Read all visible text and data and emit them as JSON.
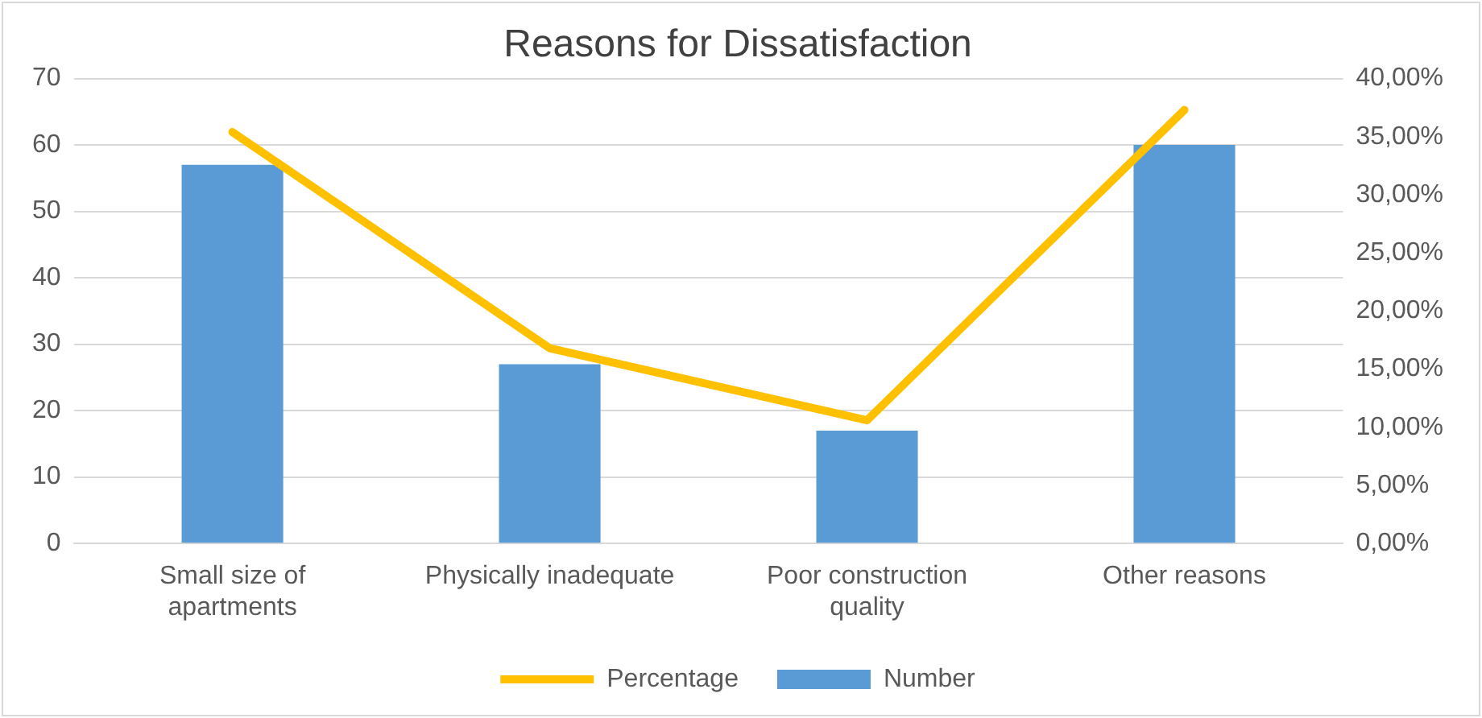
{
  "chart_data": {
    "type": "bar",
    "title": "Reasons for Dissatisfaction",
    "categories": [
      "Small size of apartments",
      "Physically inadequate",
      "Poor construction quality",
      "Other reasons"
    ],
    "series": [
      {
        "name": "Number",
        "color": "#5b9bd5",
        "values": [
          57,
          27,
          17,
          60
        ]
      },
      {
        "name": "Percentage",
        "type": "line",
        "axis": "y2",
        "color": "#ffc000",
        "values": [
          35.4,
          16.8,
          10.6,
          37.3
        ]
      }
    ],
    "ylim": [
      0,
      70
    ],
    "yticks": [
      0,
      10,
      20,
      30,
      40,
      50,
      60,
      70
    ],
    "y2lim": [
      0,
      40
    ],
    "y2ticks": [
      {
        "value": 0,
        "label": "0,00%"
      },
      {
        "value": 5,
        "label": "5,00%"
      },
      {
        "value": 10,
        "label": "10,00%"
      },
      {
        "value": 15,
        "label": "15,00%"
      },
      {
        "value": 20,
        "label": "20,00%"
      },
      {
        "value": 25,
        "label": "25,00%"
      },
      {
        "value": 30,
        "label": "30,00%"
      },
      {
        "value": 35,
        "label": "35,00%"
      },
      {
        "value": 40,
        "label": "40,00%"
      }
    ],
    "grid": "y",
    "legend": "bottom",
    "marker": "none"
  }
}
